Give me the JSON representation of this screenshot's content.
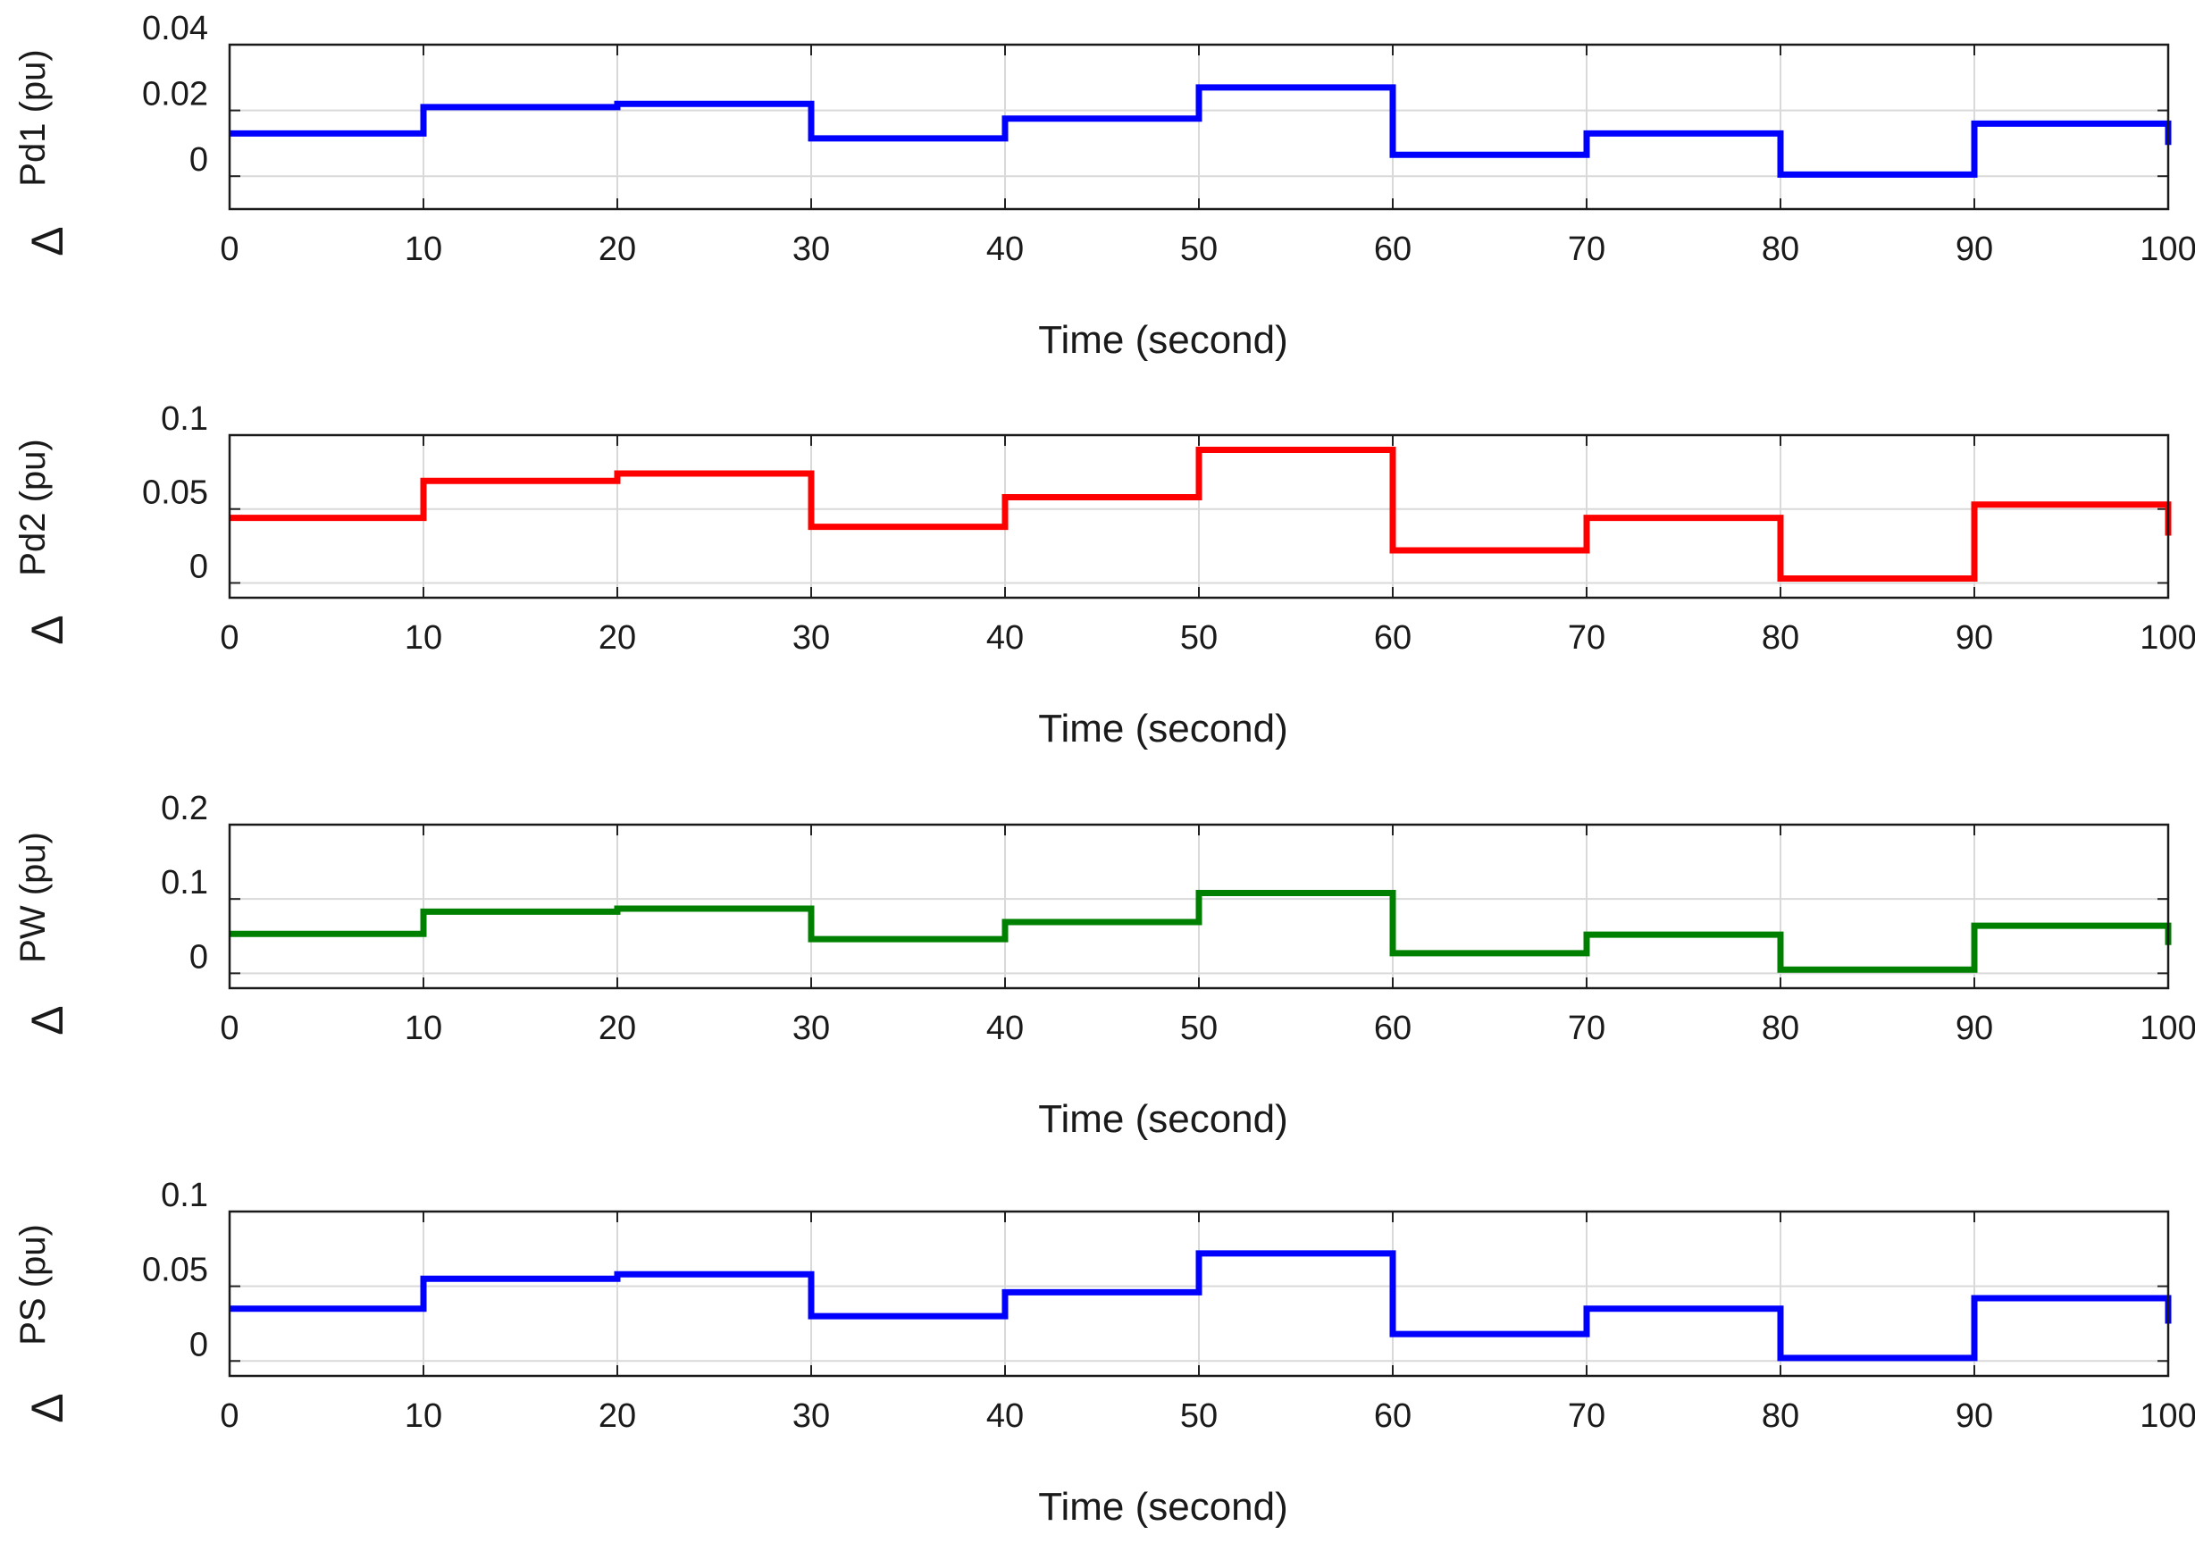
{
  "chart_data": [
    {
      "type": "line",
      "step": "post",
      "ylabel": "Pd1 (pu)",
      "ylabel_prefix": "Δ",
      "xlabel": "Time (second)",
      "xlim": [
        0,
        100
      ],
      "ylim": [
        -0.01,
        0.04
      ],
      "xticks": [
        0,
        10,
        20,
        30,
        40,
        50,
        60,
        70,
        80,
        90,
        100
      ],
      "yticks": [
        0,
        0.02,
        0.04
      ],
      "xtick_labels": [
        "0",
        "10",
        "20",
        "30",
        "40",
        "50",
        "60",
        "70",
        "80",
        "90",
        "100"
      ],
      "ytick_labels": [
        "0",
        "0.02",
        "0.04"
      ],
      "grid": true,
      "series": [
        {
          "name": "ΔPd1",
          "color": "#0000ff",
          "x": [
            0,
            10,
            20,
            30,
            40,
            50,
            60,
            70,
            80,
            90,
            100
          ],
          "y": [
            0.013,
            0.021,
            0.022,
            0.0115,
            0.0175,
            0.027,
            0.0065,
            0.013,
            0.0005,
            0.016,
            0.0095
          ]
        }
      ]
    },
    {
      "type": "line",
      "step": "post",
      "ylabel": "Pd2 (pu)",
      "ylabel_prefix": "Δ",
      "xlabel": "Time (second)",
      "xlim": [
        0,
        100
      ],
      "ylim": [
        -0.01,
        0.1
      ],
      "xticks": [
        0,
        10,
        20,
        30,
        40,
        50,
        60,
        70,
        80,
        90,
        100
      ],
      "yticks": [
        0,
        0.05,
        0.1
      ],
      "xtick_labels": [
        "0",
        "10",
        "20",
        "30",
        "40",
        "50",
        "60",
        "70",
        "80",
        "90",
        "100"
      ],
      "ytick_labels": [
        "0",
        "0.05",
        "0.1"
      ],
      "grid": true,
      "series": [
        {
          "name": "ΔPd2",
          "color": "#ff0000",
          "x": [
            0,
            10,
            20,
            30,
            40,
            50,
            60,
            70,
            80,
            90,
            100
          ],
          "y": [
            0.044,
            0.069,
            0.074,
            0.038,
            0.058,
            0.09,
            0.022,
            0.044,
            0.003,
            0.053,
            0.032
          ]
        }
      ]
    },
    {
      "type": "line",
      "step": "post",
      "ylabel": "PW (pu)",
      "ylabel_prefix": "Δ",
      "xlabel": "Time (second)",
      "xlim": [
        0,
        100
      ],
      "ylim": [
        -0.02,
        0.2
      ],
      "xticks": [
        0,
        10,
        20,
        30,
        40,
        50,
        60,
        70,
        80,
        90,
        100
      ],
      "yticks": [
        0,
        0.1,
        0.2
      ],
      "xtick_labels": [
        "0",
        "10",
        "20",
        "30",
        "40",
        "50",
        "60",
        "70",
        "80",
        "90",
        "100"
      ],
      "ytick_labels": [
        "0",
        "0.1",
        "0.2"
      ],
      "grid": true,
      "series": [
        {
          "name": "ΔPW",
          "color": "#008000",
          "x": [
            0,
            10,
            20,
            30,
            40,
            50,
            60,
            70,
            80,
            90,
            100
          ],
          "y": [
            0.053,
            0.083,
            0.087,
            0.046,
            0.069,
            0.108,
            0.027,
            0.052,
            0.005,
            0.064,
            0.038
          ]
        }
      ]
    },
    {
      "type": "line",
      "step": "post",
      "ylabel": "PS (pu)",
      "ylabel_prefix": "Δ",
      "xlabel": "Time (second)",
      "xlim": [
        0,
        100
      ],
      "ylim": [
        -0.01,
        0.1
      ],
      "xticks": [
        0,
        10,
        20,
        30,
        40,
        50,
        60,
        70,
        80,
        90,
        100
      ],
      "yticks": [
        0,
        0.05,
        0.1
      ],
      "xtick_labels": [
        "0",
        "10",
        "20",
        "30",
        "40",
        "50",
        "60",
        "70",
        "80",
        "90",
        "100"
      ],
      "ytick_labels": [
        "0",
        "0.05",
        "0.1"
      ],
      "grid": true,
      "series": [
        {
          "name": "ΔPS",
          "color": "#0000ff",
          "x": [
            0,
            10,
            20,
            30,
            40,
            50,
            60,
            70,
            80,
            90,
            100
          ],
          "y": [
            0.035,
            0.055,
            0.058,
            0.03,
            0.046,
            0.072,
            0.018,
            0.035,
            0.002,
            0.042,
            0.025
          ]
        }
      ]
    }
  ]
}
